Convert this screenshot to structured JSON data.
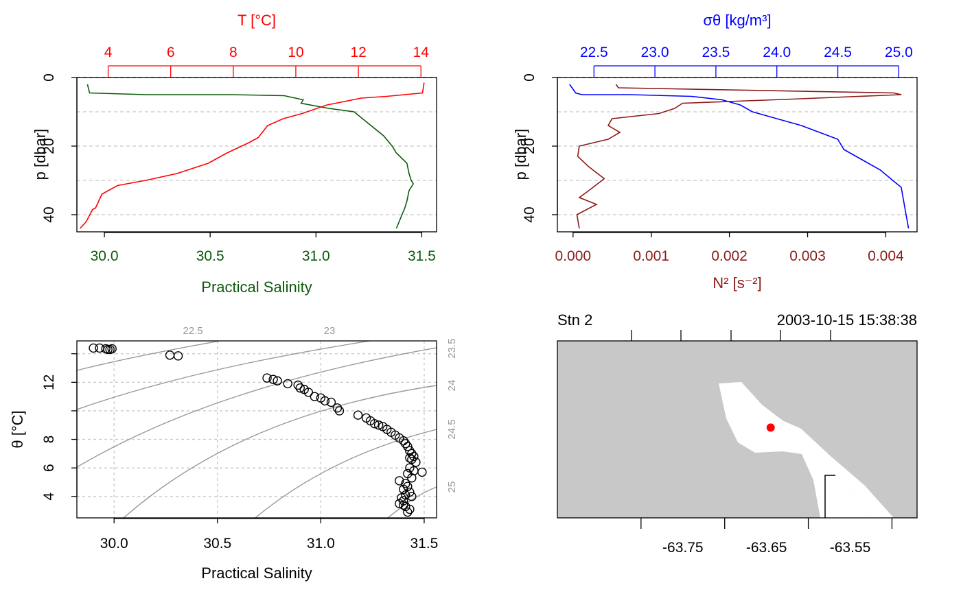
{
  "chart_data": [
    {
      "type": "line",
      "panel": "temperature-salinity-profile",
      "yaxis": {
        "label": "p [dbar]",
        "ticks": [
          0,
          20,
          40
        ],
        "range": [
          45,
          0
        ],
        "grid": [
          0,
          10,
          20,
          30,
          40
        ]
      },
      "bottom_axis": {
        "label": "Practical Salinity",
        "ticks": [
          "30.0",
          "30.5",
          "31.0",
          "31.5"
        ],
        "range": [
          29.87,
          31.57
        ],
        "color": "#0b5a0b"
      },
      "top_axis": {
        "label": "T [°C]",
        "ticks": [
          "4",
          "6",
          "8",
          "10",
          "12",
          "14"
        ],
        "range": [
          3.0,
          14.5
        ],
        "color": "#ff0000"
      },
      "series": [
        {
          "axis": "salinity",
          "color": "#0b5a0b",
          "x": [
            29.92,
            29.93,
            29.98,
            30.2,
            30.6,
            30.85,
            30.94,
            30.93,
            31.06,
            31.18,
            31.22,
            31.26,
            31.32,
            31.36,
            31.38,
            31.43,
            31.44,
            31.45,
            31.46,
            31.44,
            31.43,
            31.42,
            31.4,
            31.38
          ],
          "y": [
            2,
            4.5,
            4.6,
            5,
            5,
            5.3,
            6.5,
            7.5,
            9,
            10,
            12,
            14,
            17,
            20,
            22,
            25,
            28,
            30,
            31,
            33,
            36,
            38,
            41,
            44
          ]
        },
        {
          "axis": "temperature",
          "color": "#ff0000",
          "x": [
            14.1,
            14.05,
            12.9,
            12.1,
            11.0,
            10.2,
            9.6,
            9.1,
            8.8,
            8.5,
            7.8,
            7.2,
            6.2,
            5.2,
            4.3,
            3.8,
            3.6,
            3.5,
            3.3,
            3.1
          ],
          "y": [
            1.5,
            4.5,
            5.5,
            6,
            8,
            10.5,
            12,
            14,
            17.5,
            19,
            22,
            25,
            28,
            30,
            31.5,
            34,
            38,
            38.5,
            42,
            44
          ]
        }
      ]
    },
    {
      "type": "line",
      "panel": "density-buoyancy-profile",
      "yaxis": {
        "label": "p [dbar]",
        "ticks": [
          0,
          20,
          40
        ],
        "range": [
          45,
          0
        ],
        "grid": [
          0,
          10,
          20,
          30,
          40
        ]
      },
      "bottom_axis": {
        "label": "N² [s⁻²]",
        "ticks": [
          "0.000",
          "0.001",
          "0.002",
          "0.003",
          "0.004"
        ],
        "range": [
          -0.0002,
          0.0044
        ],
        "color": "#8b1a1a"
      },
      "top_axis": {
        "label": "σθ [kg/m³]",
        "ticks": [
          "22.5",
          "23.0",
          "23.5",
          "24.0",
          "24.5",
          "25.0"
        ],
        "range": [
          22.2,
          25.15
        ],
        "color": "#0000ff"
      },
      "series": [
        {
          "axis": "sigma",
          "color": "#0000ff",
          "x": [
            22.3,
            22.35,
            22.4,
            22.8,
            23.3,
            23.55,
            23.7,
            23.8,
            24.0,
            24.2,
            24.35,
            24.5,
            24.55,
            24.7,
            24.85,
            24.95,
            25.02,
            25.05,
            25.08
          ],
          "y": [
            2,
            4.5,
            5,
            5,
            5.5,
            6.5,
            8,
            10,
            12,
            14,
            16,
            18,
            21,
            24,
            27,
            30,
            32,
            38,
            44
          ]
        },
        {
          "axis": "n2",
          "color": "#8b1a1a",
          "x": [
            0.00055,
            0.00058,
            0.0041,
            0.0042,
            0.0028,
            0.0014,
            0.0013,
            0.0011,
            0.0005,
            0.00045,
            0.0006,
            0.00045,
            8e-05,
            6e-05,
            0.0002,
            0.0004,
            0.0002,
            8e-05,
            0.0003,
            5e-05,
            8e-05
          ],
          "y": [
            2,
            3,
            4.5,
            5,
            6.3,
            7.5,
            9,
            10.5,
            12,
            14,
            16,
            18,
            20,
            23,
            26,
            29.5,
            33,
            35,
            37,
            40,
            44
          ]
        }
      ]
    },
    {
      "type": "scatter",
      "panel": "ts-diagram",
      "xaxis": {
        "label": "Practical Salinity",
        "ticks": [
          "30.0",
          "30.5",
          "31.0",
          "31.5"
        ],
        "range": [
          29.82,
          31.56
        ]
      },
      "yaxis": {
        "label": "θ [°C]",
        "ticks": [
          "4",
          "6",
          "8",
          "12"
        ],
        "range": [
          2.5,
          14.9
        ]
      },
      "isopycnal_labels": [
        "22.5",
        "23",
        "23.5",
        "24",
        "24.5",
        "25"
      ],
      "points_x": [
        29.9,
        29.93,
        29.96,
        29.98,
        29.99,
        29.97,
        30.27,
        30.31,
        30.74,
        30.77,
        30.79,
        30.84,
        30.89,
        30.9,
        30.92,
        30.94,
        30.97,
        31.0,
        31.02,
        31.05,
        31.08,
        31.09,
        31.18,
        31.22,
        31.24,
        31.26,
        31.28,
        31.3,
        31.32,
        31.34,
        31.36,
        31.38,
        31.4,
        31.41,
        31.42,
        31.43,
        31.44,
        31.45,
        31.44,
        31.46,
        31.49,
        31.43,
        31.42,
        31.44,
        31.38,
        31.41,
        31.42,
        31.4,
        31.43,
        31.41,
        31.39,
        31.4,
        31.38,
        31.41,
        31.43,
        31.42,
        31.4,
        31.44,
        31.45,
        31.43
      ],
      "points_y": [
        14.4,
        14.4,
        14.35,
        14.3,
        14.35,
        14.3,
        13.9,
        13.85,
        12.3,
        12.2,
        12.1,
        11.9,
        11.8,
        11.6,
        11.5,
        11.3,
        11.0,
        10.9,
        10.7,
        10.6,
        10.2,
        10.0,
        9.7,
        9.5,
        9.3,
        9.1,
        9.0,
        8.9,
        8.7,
        8.5,
        8.3,
        8.1,
        7.9,
        7.7,
        7.5,
        7.2,
        7.0,
        6.8,
        6.6,
        6.4,
        5.7,
        6.0,
        5.6,
        5.3,
        5.1,
        4.9,
        4.7,
        4.5,
        4.3,
        4.1,
        3.9,
        3.7,
        3.5,
        3.3,
        3.1,
        2.9,
        3.4,
        4.0,
        5.8,
        6.7
      ]
    }
  ],
  "map": {
    "station_label": "Stn 2",
    "timestamp": "2003-10-15 15:38:38",
    "lon_ticks": [
      "-63.75",
      "-63.65",
      "-63.55"
    ],
    "station_lon": -63.645,
    "station_lat_fraction": 0.51,
    "colors": {
      "land": "#c8c8c8",
      "water": "#ffffff",
      "station": "#ff0000"
    }
  }
}
